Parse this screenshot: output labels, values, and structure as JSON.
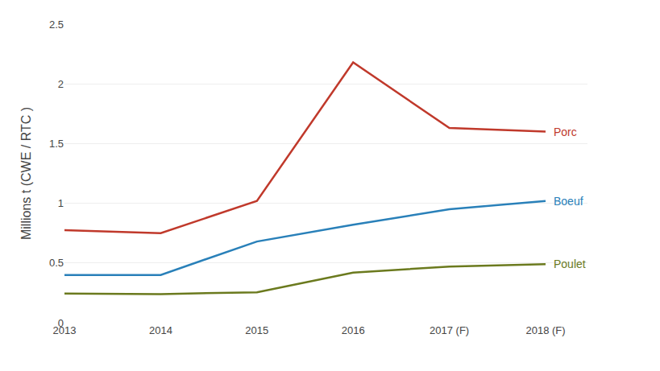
{
  "chart_data": {
    "type": "line",
    "categories": [
      "2013",
      "2014",
      "2015",
      "2016",
      "2017 (F)",
      "2018 (F)"
    ],
    "series": [
      {
        "name": "Porc",
        "color": "#c0392b",
        "values": [
          0.775,
          0.75,
          1.02,
          2.18,
          1.63,
          1.6
        ]
      },
      {
        "name": "Boeuf",
        "color": "#2980b9",
        "values": [
          0.4,
          0.4,
          0.68,
          0.82,
          0.95,
          1.02
        ]
      },
      {
        "name": "Poulet",
        "color": "#6b7a1e",
        "values": [
          0.245,
          0.24,
          0.255,
          0.42,
          0.47,
          0.49
        ]
      }
    ],
    "ylabel": "Millions t (CWE / RTC )",
    "ylim": [
      0,
      2.5
    ],
    "yticks": [
      0,
      0.5,
      1,
      1.5,
      2,
      2.5
    ],
    "grid": true
  }
}
